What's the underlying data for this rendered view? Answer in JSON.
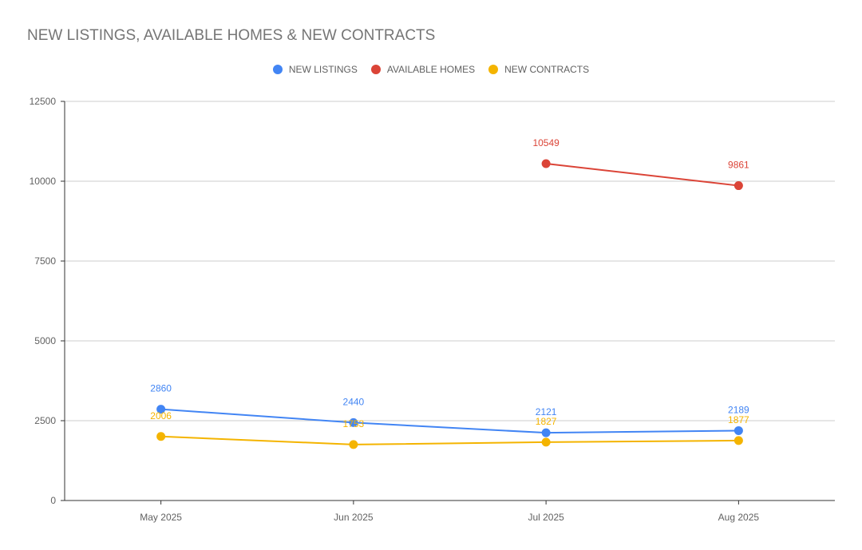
{
  "chart_data": {
    "type": "line",
    "title": "NEW LISTINGS, AVAILABLE HOMES & NEW CONTRACTS",
    "categories": [
      "May 2025",
      "Jun 2025",
      "Jul 2025",
      "Aug 2025"
    ],
    "ylim": [
      0,
      12500
    ],
    "yticks": [
      0,
      2500,
      5000,
      7500,
      10000,
      12500
    ],
    "grid": true,
    "legend_position": "top-center",
    "series": [
      {
        "name": "NEW LISTINGS",
        "color": "#4285F4",
        "values": [
          2860,
          2440,
          2121,
          2189
        ]
      },
      {
        "name": "AVAILABLE HOMES",
        "color": "#DB4437",
        "values": [
          null,
          null,
          10549,
          9861
        ]
      },
      {
        "name": "NEW CONTRACTS",
        "color": "#F4B400",
        "values": [
          2006,
          1753,
          1827,
          1877
        ]
      }
    ]
  }
}
